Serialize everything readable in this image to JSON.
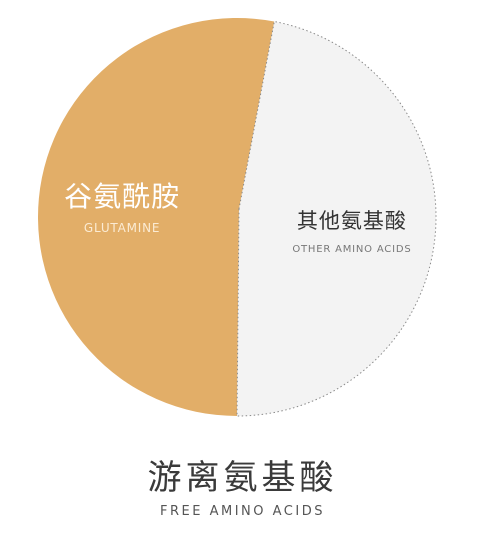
{
  "chart_data": {
    "type": "pie",
    "title": "游离氨基酸",
    "subtitle": "FREE AMINO ACIDS",
    "slices": [
      {
        "label": "谷氨酰胺",
        "sublabel": "GLUTAMINE",
        "value": 53,
        "color": "#E2AE68",
        "label_color": "#ffffff",
        "sublabel_color": "#FBEBD3"
      },
      {
        "label": "其他氨基酸",
        "sublabel": "OTHER AMINO ACIDS",
        "value": 47,
        "color": "#F3F3F3",
        "label_color": "#333333",
        "sublabel_color": "#777777",
        "border": "dotted"
      }
    ],
    "legend": "none"
  }
}
